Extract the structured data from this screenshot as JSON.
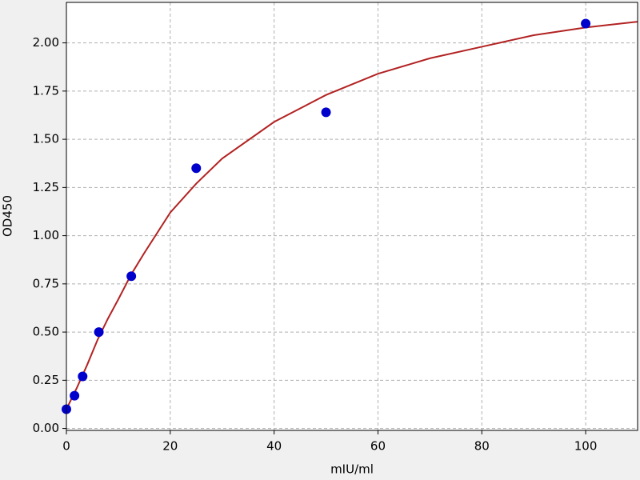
{
  "chart_data": {
    "type": "scatter",
    "x_label": "mIU/ml",
    "y_label": "OD450",
    "xlim": [
      0,
      110
    ],
    "ylim": [
      -0.01,
      2.21
    ],
    "xticks": [
      0,
      20,
      40,
      60,
      80,
      100
    ],
    "yticks": [
      {
        "value": 0,
        "label": "0.00"
      },
      {
        "value": 0.25,
        "label": "0.25"
      },
      {
        "value": 0.5,
        "label": "0.50"
      },
      {
        "value": 0.75,
        "label": "0.75"
      },
      {
        "value": 1,
        "label": "1.00"
      },
      {
        "value": 1.25,
        "label": "1.25"
      },
      {
        "value": 1.5,
        "label": "1.50"
      },
      {
        "value": 1.75,
        "label": "1.75"
      },
      {
        "value": 2,
        "label": "2.00"
      }
    ],
    "grid": true,
    "series": [
      {
        "type": "line",
        "color": "#b22222",
        "x": [
          0,
          2,
          4,
          6,
          8,
          10,
          12.5,
          15,
          20,
          25,
          30,
          40,
          50,
          60,
          70,
          80,
          90,
          100,
          110
        ],
        "values": [
          0.1,
          0.21,
          0.33,
          0.46,
          0.57,
          0.67,
          0.8,
          0.91,
          1.12,
          1.27,
          1.4,
          1.59,
          1.73,
          1.84,
          1.92,
          1.98,
          2.04,
          2.08,
          2.11
        ]
      },
      {
        "type": "scatter",
        "color": "#0000cc",
        "x": [
          0,
          1.56,
          3.125,
          6.25,
          12.5,
          25,
          50,
          100
        ],
        "values": [
          0.1,
          0.17,
          0.27,
          0.5,
          0.79,
          1.35,
          1.64,
          2.1
        ]
      }
    ]
  }
}
